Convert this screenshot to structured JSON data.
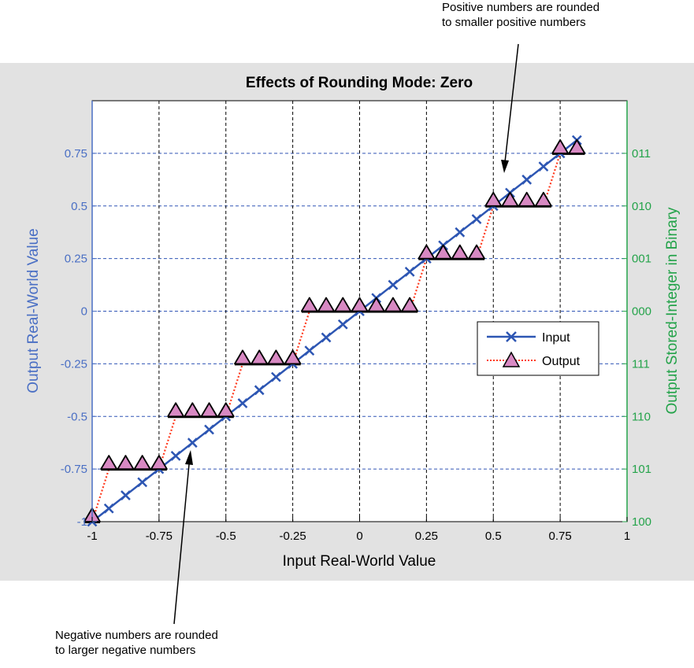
{
  "annotations": {
    "top_line1": "Positive numbers are rounded",
    "top_line2": "to smaller positive numbers",
    "bottom_line1": "Negative numbers are rounded",
    "bottom_line2": "to larger negative numbers"
  },
  "chart_data": {
    "type": "line",
    "title": "Effects of Rounding Mode: Zero",
    "xlabel": "Input Real-World Value",
    "ylabel": "Output Real-World Value",
    "y2label": "Output Stored-Integer in Binary",
    "xlim": [
      -1,
      1
    ],
    "ylim": [
      -1,
      1
    ],
    "x_ticks": [
      -1,
      -0.75,
      -0.5,
      -0.25,
      0,
      0.25,
      0.5,
      0.75,
      1
    ],
    "x_tick_labels": [
      "-1",
      "-0.75",
      "-0.5",
      "-0.25",
      "0",
      "0.25",
      "0.5",
      "0.75",
      "1"
    ],
    "y_ticks": [
      -1,
      -0.75,
      -0.5,
      -0.25,
      0,
      0.25,
      0.5,
      0.75
    ],
    "y_tick_labels": [
      "-1",
      "-0.75",
      "-0.5",
      "-0.25",
      "0",
      "0.25",
      "0.5",
      "0.75"
    ],
    "y2_tick_labels": [
      "100",
      "101",
      "110",
      "111",
      "000",
      "001",
      "010",
      "011"
    ],
    "grid": true,
    "legend_position": "right",
    "colors": {
      "input": "#2d56b3",
      "output_line": "#ff3b1f",
      "output_marker": "#d889c3",
      "left_axis": "#4a6fc4",
      "right_axis": "#24a34a",
      "background": "#e2e2e2",
      "hgrid": "#3155b5",
      "vgrid": "#000000"
    },
    "series": [
      {
        "name": "Input",
        "marker": "x",
        "x": [
          -1,
          -0.9375,
          -0.875,
          -0.8125,
          -0.75,
          -0.6875,
          -0.625,
          -0.5625,
          -0.5,
          -0.4375,
          -0.375,
          -0.3125,
          -0.25,
          -0.1875,
          -0.125,
          -0.0625,
          0,
          0.0625,
          0.125,
          0.1875,
          0.25,
          0.3125,
          0.375,
          0.4375,
          0.5,
          0.5625,
          0.625,
          0.6875,
          0.75,
          0.8125
        ],
        "y": [
          -1,
          -0.9375,
          -0.875,
          -0.8125,
          -0.75,
          -0.6875,
          -0.625,
          -0.5625,
          -0.5,
          -0.4375,
          -0.375,
          -0.3125,
          -0.25,
          -0.1875,
          -0.125,
          -0.0625,
          0,
          0.0625,
          0.125,
          0.1875,
          0.25,
          0.3125,
          0.375,
          0.4375,
          0.5,
          0.5625,
          0.625,
          0.6875,
          0.75,
          0.8125
        ]
      },
      {
        "name": "Output",
        "marker": "triangle",
        "x": [
          -1,
          -0.9375,
          -0.875,
          -0.8125,
          -0.75,
          -0.6875,
          -0.625,
          -0.5625,
          -0.5,
          -0.4375,
          -0.375,
          -0.3125,
          -0.25,
          -0.1875,
          -0.125,
          -0.0625,
          0,
          0.0625,
          0.125,
          0.1875,
          0.25,
          0.3125,
          0.375,
          0.4375,
          0.5,
          0.5625,
          0.625,
          0.6875,
          0.75,
          0.8125
        ],
        "y": [
          -1,
          -0.75,
          -0.75,
          -0.75,
          -0.75,
          -0.5,
          -0.5,
          -0.5,
          -0.5,
          -0.25,
          -0.25,
          -0.25,
          -0.25,
          0,
          0,
          0,
          0,
          0,
          0,
          0,
          0.25,
          0.25,
          0.25,
          0.25,
          0.5,
          0.5,
          0.5,
          0.5,
          0.75,
          0.75
        ]
      }
    ]
  }
}
